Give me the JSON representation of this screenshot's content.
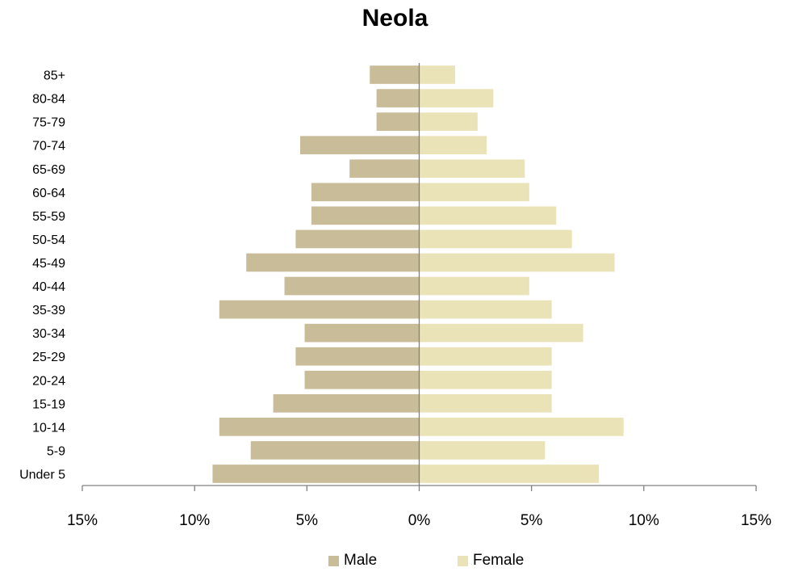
{
  "chart_data": {
    "type": "bar",
    "orientation": "horizontal",
    "layout": "population-pyramid",
    "title": "Neola",
    "categories": [
      "85+",
      "80-84",
      "75-79",
      "70-74",
      "65-69",
      "60-64",
      "55-59",
      "50-54",
      "45-49",
      "40-44",
      "35-39",
      "30-34",
      "25-29",
      "20-24",
      "15-19",
      "10-14",
      "5-9",
      "Under 5"
    ],
    "series": [
      {
        "name": "Male",
        "color": "#c9bc98",
        "values": [
          2.2,
          1.9,
          1.9,
          5.3,
          3.1,
          4.8,
          4.8,
          5.5,
          7.7,
          6.0,
          8.9,
          5.1,
          5.5,
          5.1,
          6.5,
          8.9,
          7.5,
          9.2
        ]
      },
      {
        "name": "Female",
        "color": "#ebe3b8",
        "values": [
          1.6,
          3.3,
          2.6,
          3.0,
          4.7,
          4.9,
          6.1,
          6.8,
          8.7,
          4.9,
          5.9,
          7.3,
          5.9,
          5.9,
          5.9,
          9.1,
          5.6,
          8.0
        ]
      }
    ],
    "xlim": [
      -15,
      15
    ],
    "x_ticks": [
      -15,
      -10,
      -5,
      0,
      5,
      10,
      15
    ],
    "x_tick_labels": [
      "15%",
      "10%",
      "5%",
      "0%",
      "5%",
      "10%",
      "15%"
    ],
    "xlabel": "",
    "ylabel": "",
    "grid": false,
    "legend_position": "bottom"
  }
}
